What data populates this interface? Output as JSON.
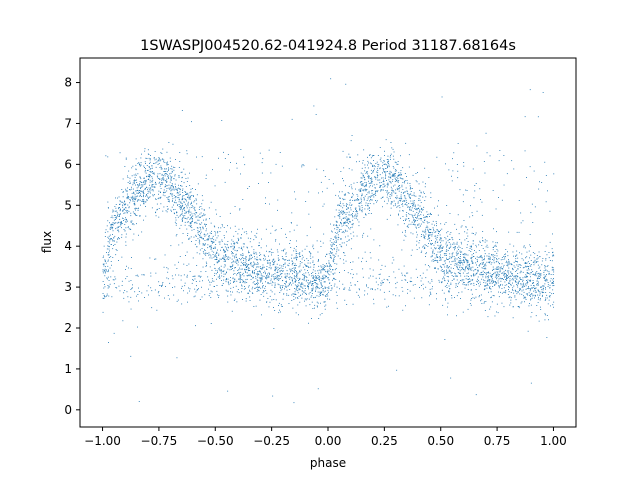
{
  "chart_data": {
    "type": "scatter",
    "title": "1SWASPJ004520.62-041924.8 Period 31187.68164s",
    "xlabel": "phase",
    "ylabel": "flux",
    "xlim": [
      -1.1,
      1.1
    ],
    "ylim": [
      -0.42,
      8.6
    ],
    "xticks": [
      -1.0,
      -0.75,
      -0.5,
      -0.25,
      0.0,
      0.25,
      0.5,
      0.75,
      1.0
    ],
    "xtick_labels": [
      "−1.00",
      "−0.75",
      "−0.50",
      "−0.25",
      "0.00",
      "0.25",
      "0.50",
      "0.75",
      "1.00"
    ],
    "yticks": [
      0,
      1,
      2,
      3,
      4,
      5,
      6,
      7,
      8
    ],
    "ytick_labels": [
      "0",
      "1",
      "2",
      "3",
      "4",
      "5",
      "6",
      "7",
      "8"
    ],
    "grid": false,
    "point_color": "#1f77b4",
    "series": [
      {
        "x": [
          -1.0,
          -0.95,
          -0.9,
          -0.85,
          -0.8,
          -0.75,
          -0.7,
          -0.65,
          -0.6,
          -0.55,
          -0.5,
          -0.45,
          -0.4,
          -0.35,
          -0.3,
          -0.25,
          -0.2,
          -0.15,
          -0.1,
          -0.05,
          0.0,
          0.05,
          0.1,
          0.15,
          0.2,
          0.25,
          0.3,
          0.35,
          0.4,
          0.45,
          0.5,
          0.55,
          0.6,
          0.65,
          0.7,
          0.75,
          0.8,
          0.85,
          0.9,
          0.95,
          1.0
        ],
        "y": [
          3.2,
          4.6,
          4.9,
          5.3,
          5.6,
          5.7,
          5.5,
          5.1,
          4.7,
          4.3,
          3.9,
          3.7,
          3.6,
          3.5,
          3.45,
          3.4,
          3.35,
          3.3,
          3.2,
          3.1,
          3.2,
          4.6,
          4.9,
          5.3,
          5.6,
          5.7,
          5.5,
          5.1,
          4.7,
          4.3,
          3.9,
          3.7,
          3.6,
          3.5,
          3.45,
          3.4,
          3.35,
          3.3,
          3.2,
          3.1,
          3.2
        ]
      }
    ]
  }
}
